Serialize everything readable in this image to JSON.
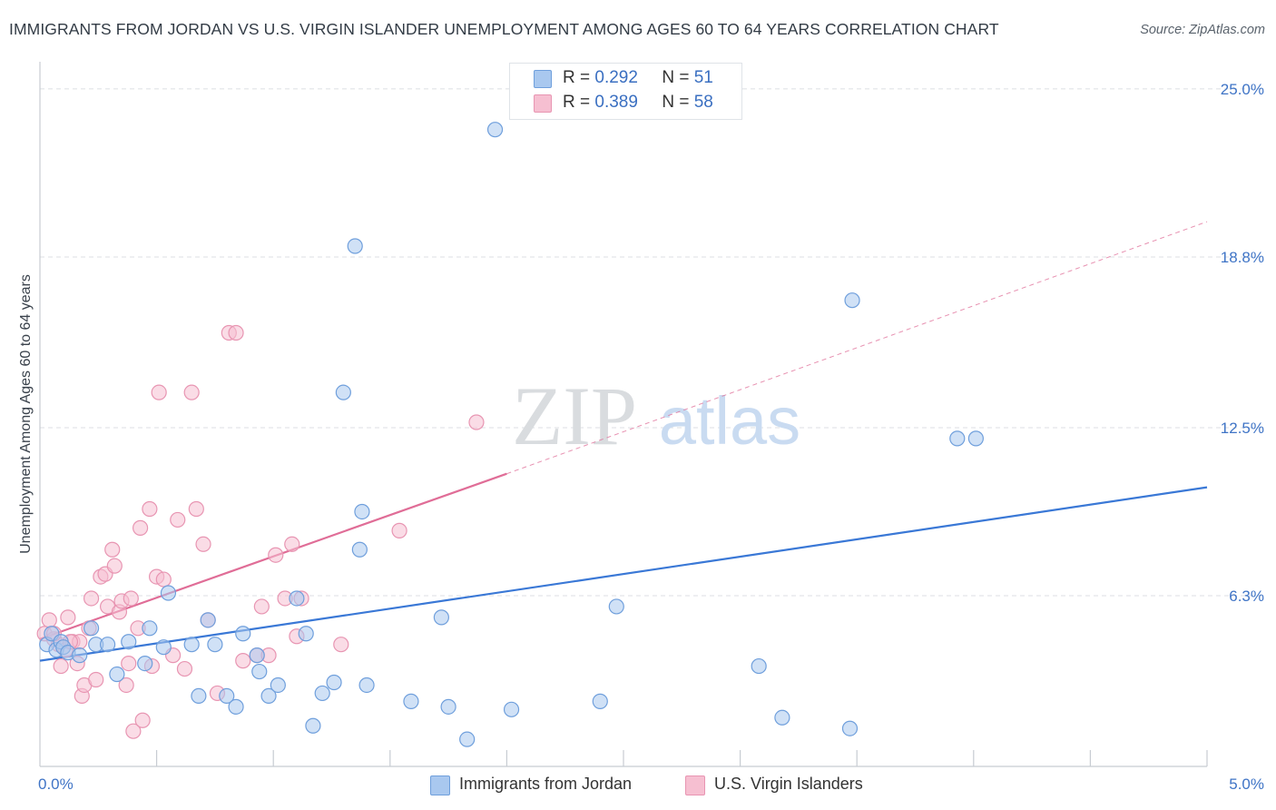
{
  "header": {
    "title": "IMMIGRANTS FROM JORDAN VS U.S. VIRGIN ISLANDER UNEMPLOYMENT AMONG AGES 60 TO 64 YEARS CORRELATION CHART",
    "source": "Source: ZipAtlas.com"
  },
  "watermark": {
    "zip": "ZIP",
    "atlas": "atlas"
  },
  "legend_top": {
    "r_label": "R =",
    "n_label": "N =",
    "jordan": {
      "r": "0.292",
      "n": "51"
    },
    "virgin": {
      "r": "0.389",
      "n": "58"
    }
  },
  "colors": {
    "jordan_fill": "#a9c8ef",
    "jordan_stroke": "#6f9fdc",
    "jordan_line": "#3a78d6",
    "virgin_fill": "#f6bfd1",
    "virgin_stroke": "#e895b2",
    "virgin_line": "#e06d97",
    "grid": "#dcdfe3",
    "tick_label": "#3f74c6"
  },
  "chart_data": {
    "type": "scatter",
    "title": "IMMIGRANTS FROM JORDAN VS U.S. VIRGIN ISLANDER UNEMPLOYMENT AMONG AGES 60 TO 64 YEARS CORRELATION CHART",
    "xlabel": "",
    "ylabel": "Unemployment Among Ages 60 to 64 years",
    "xlim": [
      0,
      5.0
    ],
    "ylim": [
      0,
      25.6
    ],
    "x_tick_labels": [
      {
        "value": 0,
        "label": "0.0%"
      },
      {
        "value": 5.0,
        "label": "5.0%"
      }
    ],
    "y_tick_labels": [
      {
        "value": 6.3,
        "label": "6.3%"
      },
      {
        "value": 12.5,
        "label": "12.5%"
      },
      {
        "value": 18.8,
        "label": "18.8%"
      },
      {
        "value": 25.0,
        "label": "25.0%"
      }
    ],
    "x_minor_ticks": [
      0.5,
      1.0,
      1.5,
      2.0,
      2.5,
      3.0,
      3.5,
      4.0,
      4.5,
      5.0
    ],
    "grid": true,
    "legend_position": "top-center",
    "series": [
      {
        "name": "Immigrants from Jordan",
        "r": 0.292,
        "n": 51,
        "trend": {
          "x0": 0,
          "y0": 3.9,
          "x1": 5.0,
          "y1": 10.3,
          "style": "solid"
        },
        "points": [
          [
            0.03,
            4.5
          ],
          [
            0.05,
            4.9
          ],
          [
            0.07,
            4.3
          ],
          [
            0.09,
            4.6
          ],
          [
            0.1,
            4.4
          ],
          [
            0.12,
            4.2
          ],
          [
            0.17,
            4.1
          ],
          [
            0.22,
            5.1
          ],
          [
            0.24,
            4.5
          ],
          [
            0.29,
            4.5
          ],
          [
            0.33,
            3.4
          ],
          [
            0.38,
            4.6
          ],
          [
            0.45,
            3.8
          ],
          [
            0.47,
            5.1
          ],
          [
            0.53,
            4.4
          ],
          [
            0.55,
            6.4
          ],
          [
            0.65,
            4.5
          ],
          [
            0.68,
            2.6
          ],
          [
            0.72,
            5.4
          ],
          [
            0.75,
            4.5
          ],
          [
            0.8,
            2.6
          ],
          [
            0.84,
            2.2
          ],
          [
            0.87,
            4.9
          ],
          [
            0.93,
            4.1
          ],
          [
            0.94,
            3.5
          ],
          [
            0.98,
            2.6
          ],
          [
            1.02,
            3.0
          ],
          [
            1.1,
            6.2
          ],
          [
            1.14,
            4.9
          ],
          [
            1.17,
            1.5
          ],
          [
            1.21,
            2.7
          ],
          [
            1.26,
            3.1
          ],
          [
            1.3,
            13.8
          ],
          [
            1.35,
            19.2
          ],
          [
            1.4,
            3.0
          ],
          [
            1.38,
            9.4
          ],
          [
            1.37,
            8.0
          ],
          [
            1.59,
            2.4
          ],
          [
            1.75,
            2.2
          ],
          [
            1.83,
            1.0
          ],
          [
            1.72,
            5.5
          ],
          [
            1.95,
            23.5
          ],
          [
            2.02,
            2.1
          ],
          [
            2.4,
            2.4
          ],
          [
            2.47,
            5.9
          ],
          [
            3.08,
            3.7
          ],
          [
            3.18,
            1.8
          ],
          [
            3.47,
            1.4
          ],
          [
            3.48,
            17.2
          ],
          [
            3.93,
            12.1
          ],
          [
            4.01,
            12.1
          ]
        ]
      },
      {
        "name": "U.S. Virgin Islanders",
        "r": 0.389,
        "n": 58,
        "trend": {
          "x0": 0,
          "y0": 4.7,
          "x1": 2.0,
          "y1": 10.8,
          "style": "solid"
        },
        "trend_extension": {
          "x0": 2.0,
          "y0": 10.8,
          "x1": 5.0,
          "y1": 20.1,
          "style": "dashed"
        },
        "points": [
          [
            0.02,
            4.9
          ],
          [
            0.04,
            5.4
          ],
          [
            0.06,
            4.7
          ],
          [
            0.08,
            4.5
          ],
          [
            0.09,
            3.7
          ],
          [
            0.11,
            4.3
          ],
          [
            0.12,
            5.5
          ],
          [
            0.14,
            4.6
          ],
          [
            0.16,
            3.8
          ],
          [
            0.17,
            4.6
          ],
          [
            0.18,
            2.6
          ],
          [
            0.19,
            3.0
          ],
          [
            0.21,
            5.1
          ],
          [
            0.22,
            6.2
          ],
          [
            0.24,
            3.2
          ],
          [
            0.26,
            7.0
          ],
          [
            0.28,
            7.1
          ],
          [
            0.29,
            5.9
          ],
          [
            0.31,
            8.0
          ],
          [
            0.32,
            7.4
          ],
          [
            0.34,
            5.7
          ],
          [
            0.35,
            6.1
          ],
          [
            0.37,
            3.0
          ],
          [
            0.38,
            3.8
          ],
          [
            0.39,
            6.2
          ],
          [
            0.4,
            1.3
          ],
          [
            0.42,
            5.1
          ],
          [
            0.43,
            8.8
          ],
          [
            0.44,
            1.7
          ],
          [
            0.47,
            9.5
          ],
          [
            0.48,
            3.7
          ],
          [
            0.5,
            7.0
          ],
          [
            0.51,
            13.8
          ],
          [
            0.53,
            6.9
          ],
          [
            0.57,
            4.1
          ],
          [
            0.59,
            9.1
          ],
          [
            0.62,
            3.6
          ],
          [
            0.65,
            13.8
          ],
          [
            0.67,
            9.5
          ],
          [
            0.7,
            8.2
          ],
          [
            0.72,
            5.4
          ],
          [
            0.76,
            2.7
          ],
          [
            0.81,
            16.0
          ],
          [
            0.84,
            16.0
          ],
          [
            0.87,
            3.9
          ],
          [
            0.93,
            4.1
          ],
          [
            0.95,
            5.9
          ],
          [
            0.98,
            4.1
          ],
          [
            1.01,
            7.8
          ],
          [
            1.05,
            6.2
          ],
          [
            1.08,
            8.2
          ],
          [
            1.1,
            4.8
          ],
          [
            1.12,
            6.2
          ],
          [
            1.29,
            4.5
          ],
          [
            1.54,
            8.7
          ],
          [
            1.87,
            12.7
          ],
          [
            0.06,
            4.9
          ],
          [
            0.13,
            4.6
          ]
        ]
      }
    ]
  },
  "legend_bottom": [
    {
      "label": "Immigrants from Jordan"
    },
    {
      "label": "U.S. Virgin Islanders"
    }
  ]
}
